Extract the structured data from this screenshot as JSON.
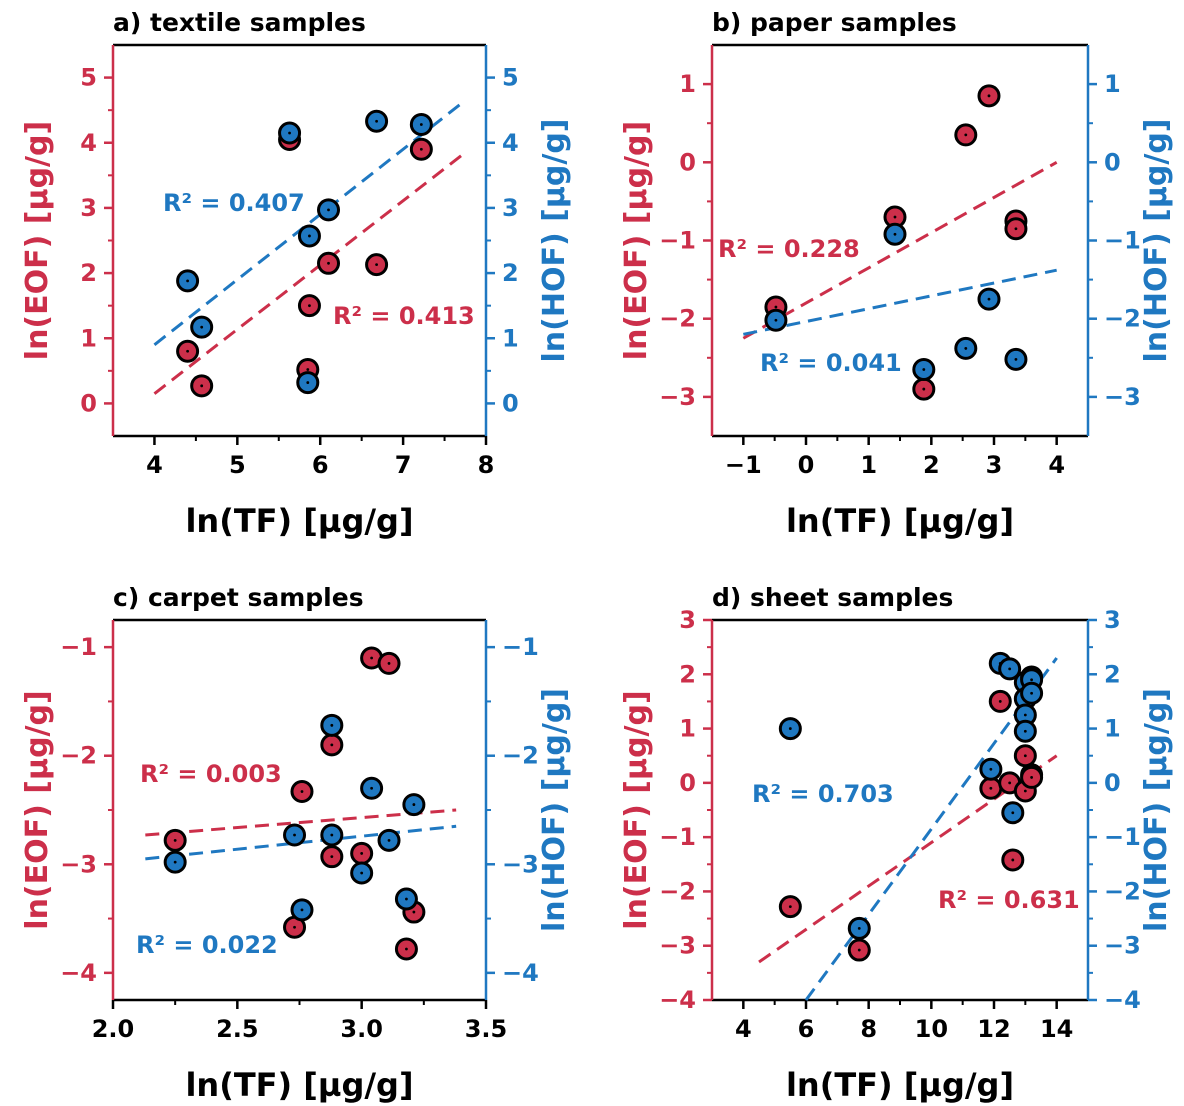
{
  "colors": {
    "eof": "#CC2F4A",
    "hof": "#1F78C1",
    "axis": "#000000"
  },
  "chart_data": [
    {
      "type": "scatter",
      "title": "a) textile samples",
      "xlabel": "ln(TF) [µg/g]",
      "ylabel_left": "ln(EOF) [µg/g]",
      "ylabel_right": "ln(HOF) [µg/g]",
      "xlim": [
        3.5,
        8
      ],
      "ylim": [
        -0.5,
        5.5
      ],
      "xticks": [
        4,
        5,
        6,
        7,
        8
      ],
      "yticks": [
        0,
        1,
        2,
        3,
        4,
        5
      ],
      "xtick_labels": [
        "4",
        "5",
        "6",
        "7",
        "8"
      ],
      "ytick_labels": [
        "0",
        "1",
        "2",
        "3",
        "4",
        "5"
      ],
      "series": [
        {
          "key": "eof",
          "axis": "left",
          "x": [
            4.4,
            4.57,
            5.63,
            5.85,
            5.87,
            6.1,
            6.68,
            7.22
          ],
          "y": [
            0.8,
            0.27,
            4.05,
            0.52,
            1.5,
            2.15,
            2.13,
            3.9
          ],
          "fit": {
            "x": [
              4.0,
              7.75
            ],
            "y": [
              0.15,
              3.85
            ]
          },
          "annotation": "R² = 0.413"
        },
        {
          "key": "hof",
          "axis": "right",
          "x": [
            4.4,
            4.57,
            5.63,
            5.85,
            5.87,
            6.1,
            6.68,
            7.22
          ],
          "y": [
            1.88,
            1.17,
            4.15,
            0.32,
            2.57,
            2.97,
            4.33,
            4.28
          ],
          "fit": {
            "x": [
              4.0,
              7.75
            ],
            "y": [
              0.9,
              4.65
            ]
          },
          "annotation": "R² = 0.407"
        }
      ]
    },
    {
      "type": "scatter",
      "title": "b) paper samples",
      "xlabel": "ln(TF) [µg/g]",
      "ylabel_left": "ln(EOF) [µg/g]",
      "ylabel_right": "ln(HOF) [µg/g]",
      "xlim": [
        -1.5,
        4.5
      ],
      "ylim": [
        -3.5,
        1.5
      ],
      "xticks": [
        -1,
        0,
        1,
        2,
        3,
        4
      ],
      "yticks": [
        -3,
        -2,
        -1,
        0,
        1
      ],
      "xtick_labels": [
        "−1",
        "0",
        "1",
        "2",
        "3",
        "4"
      ],
      "ytick_labels": [
        "−3",
        "−2",
        "−1",
        "0",
        "1"
      ],
      "series": [
        {
          "key": "eof",
          "axis": "left",
          "x": [
            -0.48,
            1.42,
            1.88,
            2.55,
            2.92,
            3.35,
            3.35
          ],
          "y": [
            -1.85,
            -0.7,
            -2.9,
            0.35,
            0.85,
            -0.75,
            -0.85
          ],
          "fit": {
            "x": [
              -1.0,
              4.0
            ],
            "y": [
              -2.25,
              0.0
            ]
          },
          "annotation": "R² = 0.228"
        },
        {
          "key": "hof",
          "axis": "right",
          "x": [
            -0.48,
            1.42,
            1.88,
            2.55,
            2.92,
            3.35
          ],
          "y": [
            -2.02,
            -0.92,
            -2.65,
            -2.38,
            -1.75,
            -2.52
          ],
          "fit": {
            "x": [
              -1.0,
              4.0
            ],
            "y": [
              -2.2,
              -1.38
            ]
          },
          "annotation": "R² = 0.041"
        }
      ]
    },
    {
      "type": "scatter",
      "title": "c) carpet samples",
      "xlabel": "ln(TF) [µg/g]",
      "ylabel_left": "ln(EOF) [µg/g]",
      "ylabel_right": "ln(HOF) [µg/g]",
      "xlim": [
        2.0,
        3.5
      ],
      "ylim": [
        -4.25,
        -0.75
      ],
      "xticks": [
        2.0,
        2.5,
        3.0,
        3.5
      ],
      "yticks": [
        -4,
        -3,
        -2,
        -1
      ],
      "xtick_labels": [
        "2.0",
        "2.5",
        "3.0",
        "3.5"
      ],
      "ytick_labels": [
        "−4",
        "−3",
        "−2",
        "−1"
      ],
      "series": [
        {
          "key": "eof",
          "axis": "left",
          "x": [
            2.25,
            2.73,
            2.76,
            2.88,
            2.88,
            3.0,
            3.04,
            3.11,
            3.18,
            3.21
          ],
          "y": [
            -2.78,
            -3.58,
            -2.33,
            -1.9,
            -2.93,
            -2.9,
            -1.1,
            -1.15,
            -3.78,
            -3.44
          ],
          "fit": {
            "x": [
              2.13,
              3.38
            ],
            "y": [
              -2.73,
              -2.5
            ]
          },
          "annotation": "R² = 0.003"
        },
        {
          "key": "hof",
          "axis": "right",
          "x": [
            2.25,
            2.73,
            2.76,
            2.88,
            2.88,
            3.0,
            3.04,
            3.11,
            3.18,
            3.21
          ],
          "y": [
            -2.98,
            -2.73,
            -3.42,
            -1.72,
            -2.73,
            -3.08,
            -2.3,
            -2.78,
            -3.32,
            -2.45
          ],
          "fit": {
            "x": [
              2.13,
              3.38
            ],
            "y": [
              -2.95,
              -2.65
            ]
          },
          "annotation": "R² = 0.022"
        }
      ]
    },
    {
      "type": "scatter",
      "title": "d) sheet samples",
      "xlabel": "ln(TF) [µg/g]",
      "ylabel_left": "ln(EOF) [µg/g]",
      "ylabel_right": "ln(HOF) [µg/g]",
      "xlim": [
        3.0,
        15.0
      ],
      "ylim": [
        -4,
        3
      ],
      "xticks": [
        4,
        6,
        8,
        10,
        12,
        14
      ],
      "yticks": [
        -4,
        -3,
        -2,
        -1,
        0,
        1,
        2,
        3
      ],
      "xtick_labels": [
        "4",
        "6",
        "8",
        "10",
        "12",
        "14"
      ],
      "ytick_labels": [
        "−4",
        "−3",
        "−2",
        "−1",
        "0",
        "1",
        "2",
        "3"
      ],
      "series": [
        {
          "key": "eof",
          "axis": "left",
          "x": [
            5.5,
            7.7,
            11.9,
            12.2,
            12.5,
            12.6,
            13.0,
            13.0,
            13.2,
            13.2
          ],
          "y": [
            -2.28,
            -3.08,
            -0.1,
            1.5,
            0.0,
            -1.42,
            0.5,
            -0.15,
            0.15,
            0.1
          ],
          "fit": {
            "x": [
              4.5,
              14.0
            ],
            "y": [
              -3.3,
              0.5
            ]
          },
          "annotation": "R² = 0.631"
        },
        {
          "key": "hof",
          "axis": "right",
          "x": [
            5.5,
            7.7,
            11.9,
            12.2,
            12.5,
            12.6,
            13.0,
            13.0,
            13.0,
            13.0,
            13.2,
            13.2,
            13.2
          ],
          "y": [
            1.0,
            -2.68,
            0.25,
            2.2,
            2.1,
            -0.55,
            1.85,
            1.55,
            1.25,
            0.95,
            1.95,
            1.9,
            1.65
          ],
          "fit": {
            "x": [
              6.0,
              14.0
            ],
            "y": [
              -4.0,
              2.3
            ]
          },
          "annotation": "R² = 0.703"
        }
      ]
    }
  ]
}
